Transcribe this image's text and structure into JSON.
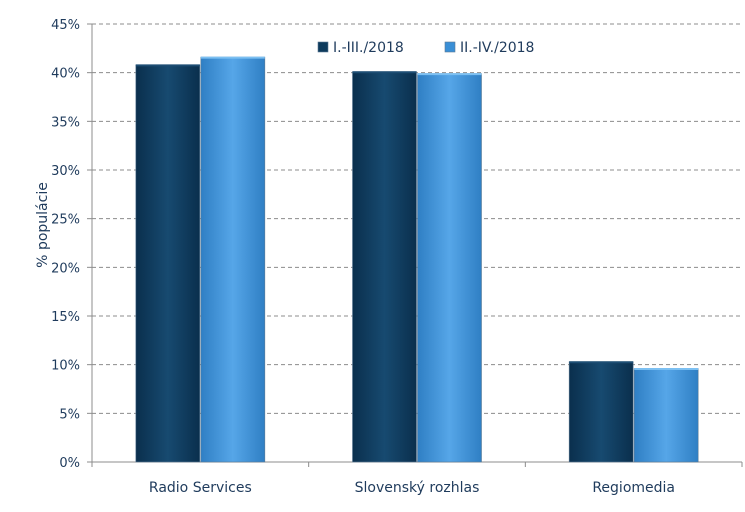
{
  "chart_data": {
    "type": "bar",
    "categories": [
      "Radio Services",
      "Slovenský rozhlas",
      "Regiomedia"
    ],
    "series": [
      {
        "name": "I.-III./2018",
        "values": [
          40.8,
          40.1,
          10.3
        ],
        "color": "#0d3a5c"
      },
      {
        "name": "II.-IV./2018",
        "values": [
          41.6,
          39.9,
          9.6
        ],
        "color": "#3a8fd6"
      }
    ],
    "ylabel": "% populácie",
    "ylim": [
      0,
      45
    ],
    "yticks": [
      "0%",
      "5%",
      "10%",
      "15%",
      "20%",
      "25%",
      "30%",
      "35%",
      "40%",
      "45%"
    ],
    "ytick_values": [
      0,
      5,
      10,
      15,
      20,
      25,
      30,
      35,
      40,
      45
    ],
    "grid": true,
    "legend_position": "top-right"
  }
}
